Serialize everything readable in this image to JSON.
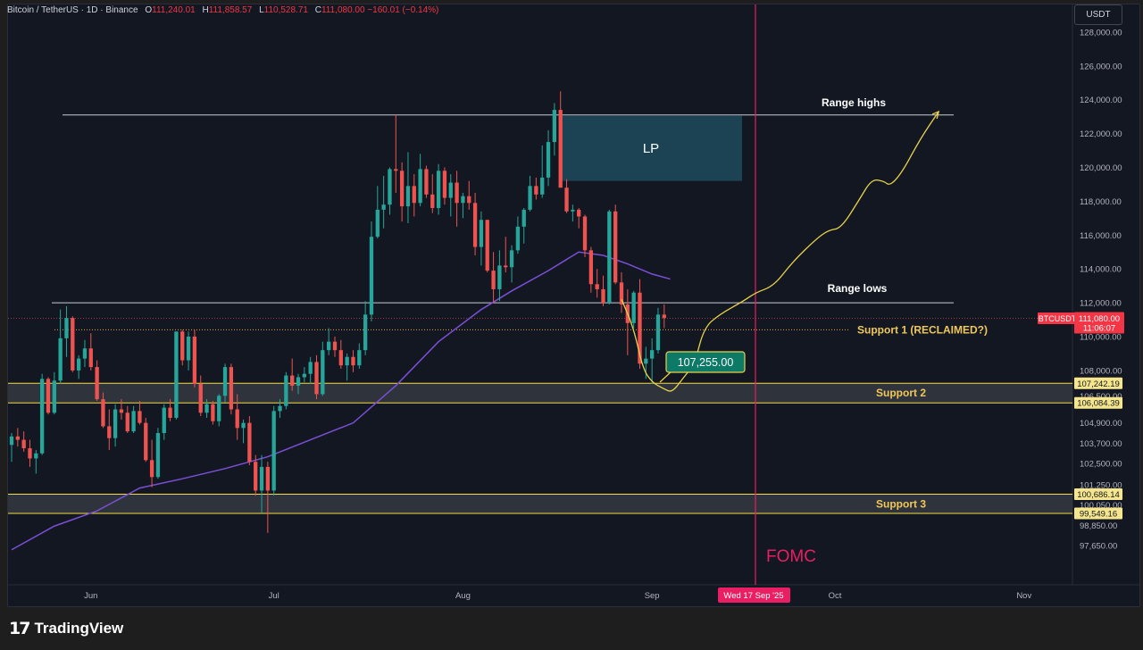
{
  "header": {
    "symbol": "Bitcoin / TetherUS · 1D · Binance",
    "o_label": "O",
    "o_value": "111,240.01",
    "h_label": "H",
    "h_value": "111,858.57",
    "l_label": "L",
    "l_value": "110,528.71",
    "c_label": "C",
    "c_value": "111,080.00",
    "change": "−160.01 (−0.14%)"
  },
  "currency": "USDT",
  "brand": {
    "name": "TradingView",
    "mark": "17"
  },
  "colors": {
    "bg": "#131722",
    "up": "#26a69a",
    "down": "#ef5350",
    "ma": "#7b4fd6",
    "zone_line": "#f5dd42",
    "zone_label": "#f0c85a",
    "fomc": "#e91e63",
    "projection": "#e8d34a",
    "lp_box": "#1f4b5c",
    "grid": "#1f2330"
  },
  "chart_data": {
    "type": "candlestick",
    "title": "Bitcoin / TetherUS · 1D · Binance",
    "x_range": [
      "2025-05-19",
      "2025-11-14"
    ],
    "y_ticks": [
      "128,000.00",
      "126,000.00",
      "124,000.00",
      "122,000.00",
      "120,000.00",
      "118,000.00",
      "116,000.00",
      "114,000.00",
      "112,000.00",
      "110,000.00",
      "108,000.00",
      "106,500.00",
      "104,900.00",
      "103,700.00",
      "102,500.00",
      "101,250.00",
      "100,050.00",
      "98,850.00",
      "97,650.00"
    ],
    "x_ticks": [
      "Jun",
      "Jul",
      "Aug",
      "Sep",
      "Oct",
      "Nov"
    ],
    "candles": [
      [
        103600,
        104300,
        102600,
        104100
      ],
      [
        104100,
        104600,
        103500,
        103900
      ],
      [
        103900,
        104400,
        103200,
        103400
      ],
      [
        103400,
        103900,
        102300,
        102800
      ],
      [
        102800,
        103300,
        101900,
        103100
      ],
      [
        103100,
        107800,
        103000,
        107500
      ],
      [
        107500,
        107600,
        105400,
        105500
      ],
      [
        105500,
        107900,
        105400,
        107400
      ],
      [
        107400,
        111600,
        107200,
        109900
      ],
      [
        109900,
        111800,
        108800,
        111100
      ],
      [
        111100,
        111200,
        107900,
        108000
      ],
      [
        108000,
        108900,
        107500,
        108700
      ],
      [
        108700,
        109800,
        108200,
        109300
      ],
      [
        109300,
        110200,
        108000,
        108200
      ],
      [
        108200,
        108600,
        106200,
        106300
      ],
      [
        106300,
        106700,
        104600,
        104700
      ],
      [
        104700,
        105700,
        103300,
        104000
      ],
      [
        104000,
        106000,
        103500,
        105700
      ],
      [
        105700,
        106300,
        105100,
        105500
      ],
      [
        105500,
        105900,
        104300,
        104400
      ],
      [
        104400,
        105900,
        104300,
        105600
      ],
      [
        105600,
        106200,
        104800,
        104900
      ],
      [
        104900,
        105200,
        102600,
        102700
      ],
      [
        102700,
        103900,
        101100,
        101700
      ],
      [
        101700,
        104600,
        101600,
        104300
      ],
      [
        104300,
        106000,
        103900,
        105800
      ],
      [
        105800,
        106300,
        105000,
        105200
      ],
      [
        105200,
        110300,
        105100,
        110300
      ],
      [
        110300,
        110400,
        108300,
        108600
      ],
      [
        108600,
        110300,
        108000,
        110000
      ],
      [
        110000,
        110400,
        107000,
        107200
      ],
      [
        107200,
        107700,
        105300,
        105500
      ],
      [
        105500,
        106300,
        105200,
        106000
      ],
      [
        106000,
        106200,
        104800,
        105000
      ],
      [
        105000,
        106600,
        104700,
        106500
      ],
      [
        106500,
        108400,
        106100,
        108200
      ],
      [
        108200,
        108400,
        105400,
        105700
      ],
      [
        105700,
        106600,
        103900,
        104600
      ],
      [
        104600,
        105100,
        103700,
        104900
      ],
      [
        104900,
        105300,
        102400,
        102600
      ],
      [
        102600,
        103000,
        100600,
        100900
      ],
      [
        100900,
        103000,
        99600,
        102300
      ],
      [
        102300,
        102600,
        98400,
        100900
      ],
      [
        100900,
        105900,
        100600,
        105600
      ],
      [
        105600,
        106300,
        105200,
        105900
      ],
      [
        105900,
        107900,
        105700,
        107700
      ],
      [
        107700,
        108700,
        106800,
        107100
      ],
      [
        107100,
        107800,
        106600,
        107600
      ],
      [
        107600,
        108200,
        107300,
        107800
      ],
      [
        107800,
        108800,
        107200,
        108500
      ],
      [
        108500,
        108900,
        106300,
        106600
      ],
      [
        106600,
        109700,
        106500,
        109200
      ],
      [
        109200,
        110500,
        108900,
        109700
      ],
      [
        109700,
        110000,
        108800,
        109200
      ],
      [
        109200,
        109800,
        108100,
        108300
      ],
      [
        108300,
        109000,
        107400,
        108800
      ],
      [
        108800,
        109200,
        107900,
        108300
      ],
      [
        108300,
        109600,
        108100,
        109200
      ],
      [
        109200,
        112100,
        108900,
        111300
      ],
      [
        111300,
        116800,
        110900,
        115900
      ],
      [
        115900,
        118900,
        115800,
        117500
      ],
      [
        117500,
        119500,
        116400,
        117800
      ],
      [
        117800,
        120000,
        117200,
        119900
      ],
      [
        119900,
        123100,
        118500,
        119800
      ],
      [
        119800,
        120300,
        116800,
        117700
      ],
      [
        117700,
        120900,
        116700,
        118900
      ],
      [
        118900,
        119600,
        117100,
        117900
      ],
      [
        117900,
        120800,
        117700,
        119900
      ],
      [
        119900,
        120100,
        118200,
        118400
      ],
      [
        118400,
        119600,
        117300,
        117600
      ],
      [
        117600,
        120200,
        117200,
        119800
      ],
      [
        119800,
        120000,
        117800,
        118200
      ],
      [
        118200,
        119600,
        117100,
        119100
      ],
      [
        119100,
        119800,
        116500,
        117900
      ],
      [
        117900,
        118500,
        117000,
        118300
      ],
      [
        118300,
        119200,
        117500,
        117900
      ],
      [
        117900,
        118500,
        114800,
        115300
      ],
      [
        115300,
        117400,
        114200,
        116900
      ],
      [
        116900,
        116900,
        113800,
        113900
      ],
      [
        113900,
        115000,
        112000,
        112800
      ],
      [
        112800,
        115100,
        112100,
        114200
      ],
      [
        114200,
        115900,
        113800,
        114100
      ],
      [
        114100,
        115400,
        113200,
        115100
      ],
      [
        115100,
        117100,
        114900,
        116500
      ],
      [
        116500,
        117600,
        115500,
        117500
      ],
      [
        117500,
        119500,
        117400,
        118900
      ],
      [
        118900,
        119400,
        118100,
        118400
      ],
      [
        118400,
        121300,
        118200,
        119400
      ],
      [
        119400,
        122200,
        118900,
        121500
      ],
      [
        121500,
        123800,
        120700,
        123400
      ],
      [
        123400,
        124500,
        118900,
        118800
      ],
      [
        118800,
        119300,
        117300,
        117400
      ],
      [
        117400,
        117800,
        116800,
        117500
      ],
      [
        117500,
        117600,
        116400,
        117100
      ],
      [
        117100,
        117200,
        114700,
        115100
      ],
      [
        115100,
        115300,
        112600,
        113100
      ],
      [
        113100,
        114000,
        112300,
        112800
      ],
      [
        112800,
        113600,
        111800,
        112000
      ],
      [
        112000,
        117500,
        111900,
        117400
      ],
      [
        117400,
        117800,
        113100,
        113200
      ],
      [
        113200,
        113800,
        111400,
        111900
      ],
      [
        111900,
        112800,
        108900,
        110800
      ],
      [
        110800,
        112700,
        110500,
        112600
      ],
      [
        112600,
        113400,
        108100,
        108400
      ],
      [
        108400,
        109400,
        107500,
        108700
      ],
      [
        108700,
        109900,
        107200,
        109200
      ],
      [
        109200,
        111700,
        109000,
        111300
      ],
      [
        111300,
        111900,
        110500,
        111100
      ]
    ],
    "ma": [
      [
        0,
        97400
      ],
      [
        7,
        98800
      ],
      [
        14,
        99700
      ],
      [
        21,
        101050
      ],
      [
        28,
        101600
      ],
      [
        35,
        102200
      ],
      [
        42,
        102900
      ],
      [
        49,
        103900
      ],
      [
        56,
        104900
      ],
      [
        63,
        107100
      ],
      [
        70,
        109700
      ],
      [
        77,
        111600
      ],
      [
        82,
        112700
      ],
      [
        88,
        113900
      ],
      [
        93,
        115000
      ],
      [
        97,
        114800
      ],
      [
        101,
        114300
      ],
      [
        105,
        113700
      ],
      [
        108,
        113400
      ]
    ],
    "levels": [
      {
        "name": "Range highs",
        "value": 123100
      },
      {
        "name": "Range lows",
        "value": 112000
      },
      {
        "name": "Support 1 (RECLAIMED?)",
        "value": 110400
      },
      {
        "name": "Support 2",
        "low": 106084.39,
        "high": 107242.19,
        "low_label": "106,084.39",
        "high_label": "107,242.19"
      },
      {
        "name": "Support 3",
        "low": 99549.16,
        "high": 100686.14,
        "low_label": "99,549.16",
        "high_label": "100,686.14"
      }
    ],
    "lp_zone": {
      "label": "LP",
      "low": 119200,
      "high": 123050
    },
    "last_price": {
      "symbol": "BTCUSDT",
      "value": "111,080.00",
      "countdown": "11:06:07"
    },
    "callout": "107,255.00",
    "event": {
      "label": "FOMC",
      "date": "Wed 17 Sep '25"
    },
    "projection": [
      [
        100,
        112200
      ],
      [
        102,
        110500
      ],
      [
        103.5,
        108100
      ],
      [
        105,
        107300
      ],
      [
        107,
        106900
      ],
      [
        108.3,
        106700
      ],
      [
        110,
        107500
      ],
      [
        112,
        108400
      ],
      [
        113.5,
        110500
      ],
      [
        116,
        111300
      ],
      [
        120,
        112100
      ],
      [
        122,
        112600
      ],
      [
        125,
        113000
      ],
      [
        128,
        114400
      ],
      [
        132,
        115800
      ],
      [
        134,
        116300
      ],
      [
        136,
        116400
      ],
      [
        139,
        118100
      ],
      [
        141,
        119300
      ],
      [
        143,
        119200
      ],
      [
        144,
        118900
      ],
      [
        146,
        119700
      ],
      [
        149,
        121700
      ],
      [
        152,
        123300
      ]
    ]
  }
}
